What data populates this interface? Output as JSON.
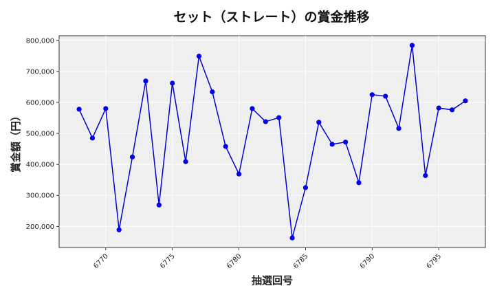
{
  "chart_data": {
    "type": "line",
    "title": "セット（ストレート）の賞金推移",
    "xlabel": "抽選回号",
    "ylabel": "賞金額（円）",
    "x": [
      6768,
      6769,
      6770,
      6771,
      6772,
      6773,
      6774,
      6775,
      6776,
      6777,
      6778,
      6779,
      6780,
      6781,
      6782,
      6783,
      6784,
      6785,
      6786,
      6787,
      6788,
      6789,
      6790,
      6791,
      6792,
      6793,
      6794,
      6795,
      6796,
      6797
    ],
    "series": [
      {
        "values": [
          578000,
          485000,
          580000,
          189000,
          424000,
          669000,
          269000,
          662000,
          409000,
          749000,
          634000,
          458000,
          369000,
          580000,
          538000,
          551000,
          163000,
          325000,
          536000,
          465000,
          472000,
          341000,
          625000,
          620000,
          516000,
          784000,
          364000,
          582000,
          576000,
          605000
        ]
      }
    ],
    "xticks": [
      6770,
      6775,
      6780,
      6785,
      6790,
      6795
    ],
    "yticks": [
      200000,
      300000,
      400000,
      500000,
      600000,
      700000,
      800000
    ],
    "ytick_labels": [
      "200,000",
      "300,000",
      "400,000",
      "500,000",
      "600,000",
      "700,000",
      "800,000"
    ],
    "xlim": [
      6766.5,
      6798.5
    ],
    "ylim": [
      132000,
      815000
    ],
    "grid": true,
    "line_color": "#0000cc",
    "marker_color": "#0000ee",
    "plot_background": "#efefef"
  }
}
